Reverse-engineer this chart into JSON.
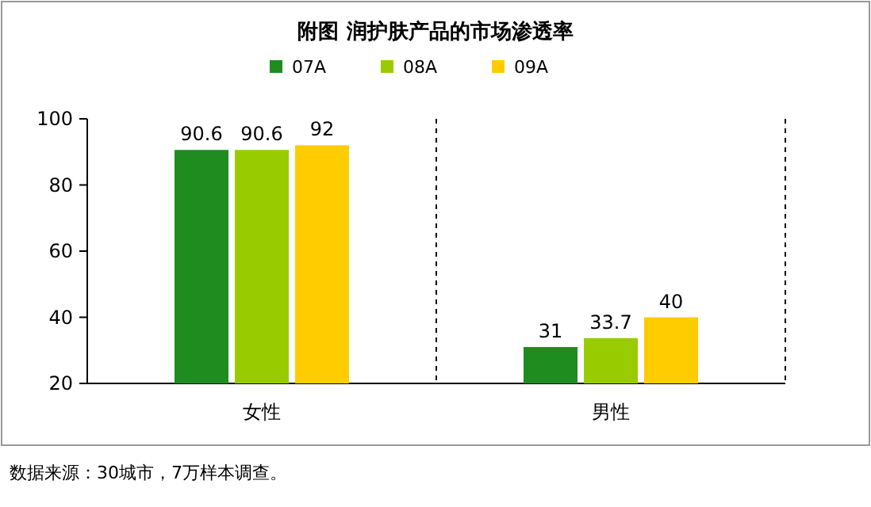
{
  "chart_data": {
    "type": "bar",
    "title": "附图  润护肤产品的市场渗透率",
    "categories": [
      "女性",
      "男性"
    ],
    "series": [
      {
        "name": "07A",
        "color": "#1e8c1e",
        "values": [
          90.6,
          31
        ]
      },
      {
        "name": "08A",
        "color": "#99cc00",
        "values": [
          90.6,
          33.7
        ]
      },
      {
        "name": "09A",
        "color": "#ffcc00",
        "values": [
          92,
          40
        ]
      }
    ],
    "ylim": [
      20,
      100
    ],
    "yticks": [
      20,
      40,
      60,
      80,
      100
    ],
    "data_labels": true,
    "legend": "top",
    "grid": false,
    "annotations": [
      "数据来源：30城市，7万样本调查。"
    ]
  }
}
